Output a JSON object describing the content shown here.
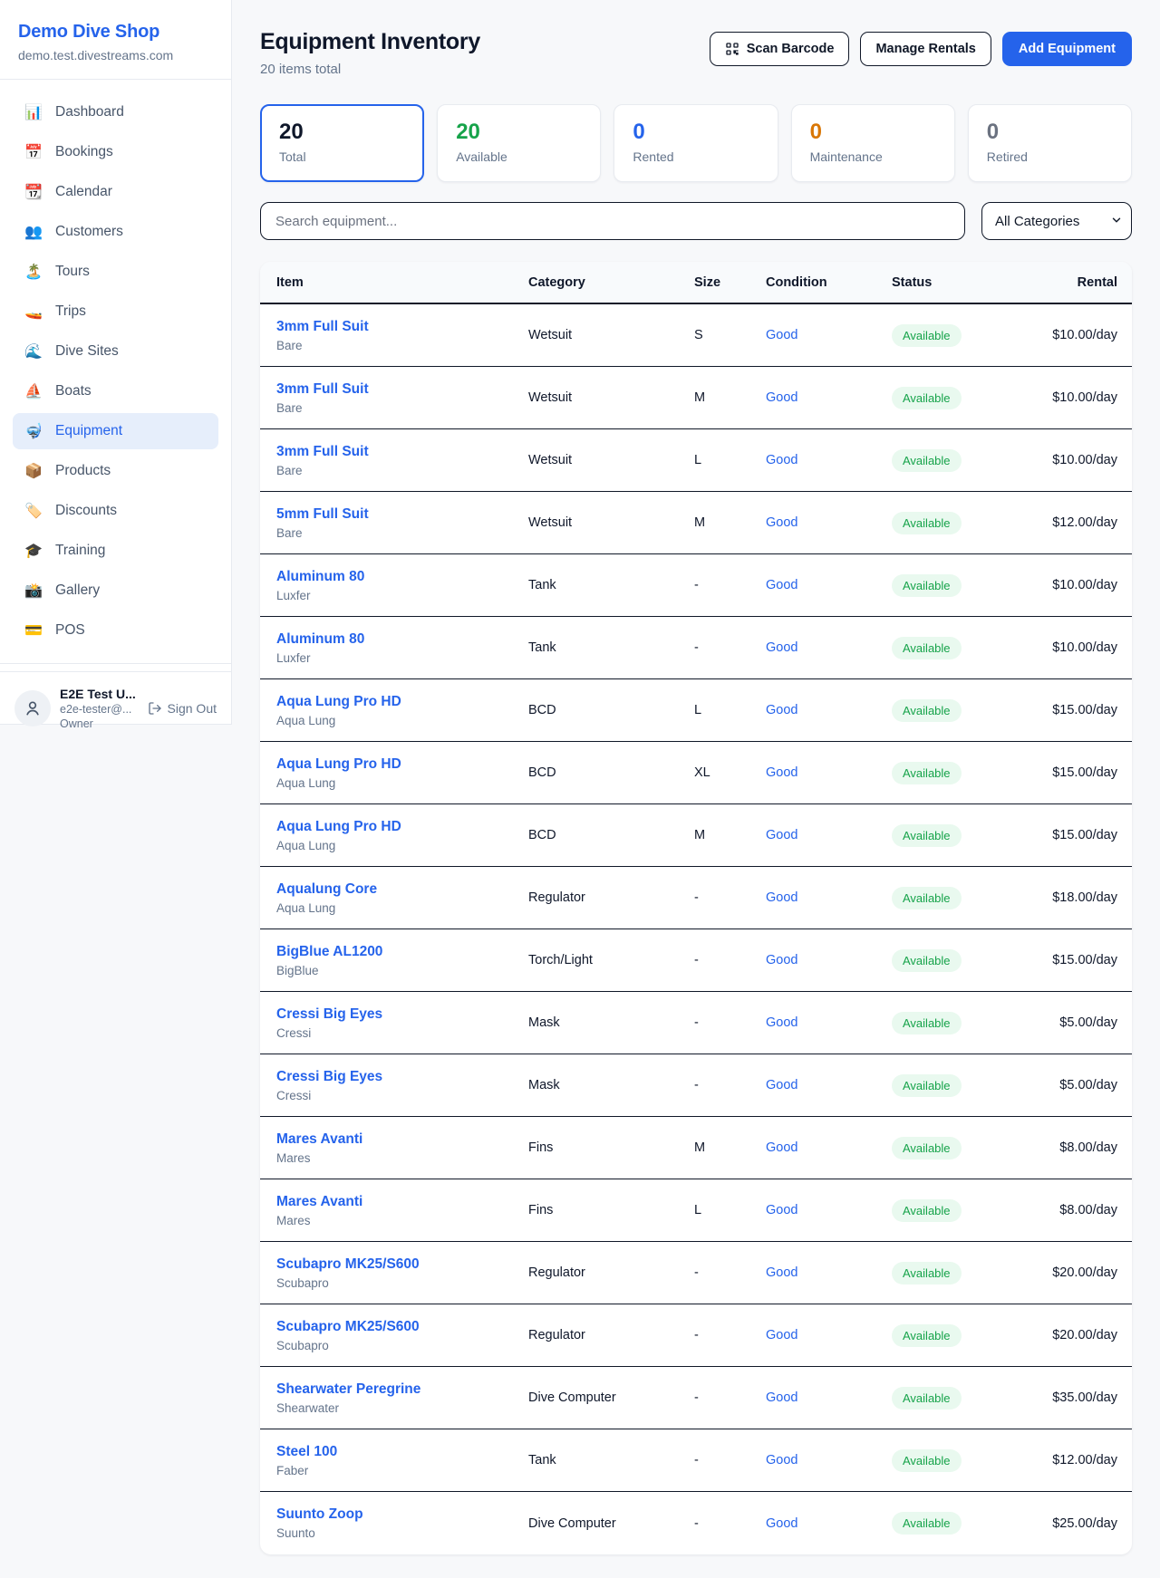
{
  "sidebar": {
    "brand": "Demo Dive Shop",
    "domain": "demo.test.divestreams.com",
    "items": [
      {
        "label": "Dashboard",
        "icon": "📊",
        "active": false
      },
      {
        "label": "Bookings",
        "icon": "📅",
        "active": false
      },
      {
        "label": "Calendar",
        "icon": "📆",
        "active": false
      },
      {
        "label": "Customers",
        "icon": "👥",
        "active": false
      },
      {
        "label": "Tours",
        "icon": "🏝️",
        "active": false
      },
      {
        "label": "Trips",
        "icon": "🚤",
        "active": false
      },
      {
        "label": "Dive Sites",
        "icon": "🌊",
        "active": false
      },
      {
        "label": "Boats",
        "icon": "⛵",
        "active": false
      },
      {
        "label": "Equipment",
        "icon": "🤿",
        "active": true
      },
      {
        "label": "Products",
        "icon": "📦",
        "active": false
      },
      {
        "label": "Discounts",
        "icon": "🏷️",
        "active": false
      },
      {
        "label": "Training",
        "icon": "🎓",
        "active": false
      },
      {
        "label": "Gallery",
        "icon": "📸",
        "active": false
      },
      {
        "label": "POS",
        "icon": "💳",
        "active": false
      }
    ],
    "user": {
      "name": "E2E Test U...",
      "email": "e2e-tester@...",
      "role": "Owner",
      "sign_out_label": "Sign Out"
    }
  },
  "header": {
    "title": "Equipment Inventory",
    "subtitle": "20 items total",
    "scan_barcode_label": "Scan Barcode",
    "manage_rentals_label": "Manage Rentals",
    "add_equipment_label": "Add Equipment"
  },
  "stats": [
    {
      "value": "20",
      "label": "Total",
      "color": "#0f172a",
      "selected": true
    },
    {
      "value": "20",
      "label": "Available",
      "color": "#16a34a",
      "selected": false
    },
    {
      "value": "0",
      "label": "Rented",
      "color": "#2563eb",
      "selected": false
    },
    {
      "value": "0",
      "label": "Maintenance",
      "color": "#d97706",
      "selected": false
    },
    {
      "value": "0",
      "label": "Retired",
      "color": "#6b7280",
      "selected": false
    }
  ],
  "filters": {
    "search_placeholder": "Search equipment...",
    "category_selected": "All Categories",
    "category_options": [
      "All Categories"
    ]
  },
  "table": {
    "columns": [
      "Item",
      "Category",
      "Size",
      "Condition",
      "Status",
      "Rental"
    ],
    "rows": [
      {
        "name": "3mm Full Suit",
        "brand": "Bare",
        "category": "Wetsuit",
        "size": "S",
        "condition": "Good",
        "status": "Available",
        "rental": "$10.00/day"
      },
      {
        "name": "3mm Full Suit",
        "brand": "Bare",
        "category": "Wetsuit",
        "size": "M",
        "condition": "Good",
        "status": "Available",
        "rental": "$10.00/day"
      },
      {
        "name": "3mm Full Suit",
        "brand": "Bare",
        "category": "Wetsuit",
        "size": "L",
        "condition": "Good",
        "status": "Available",
        "rental": "$10.00/day"
      },
      {
        "name": "5mm Full Suit",
        "brand": "Bare",
        "category": "Wetsuit",
        "size": "M",
        "condition": "Good",
        "status": "Available",
        "rental": "$12.00/day"
      },
      {
        "name": "Aluminum 80",
        "brand": "Luxfer",
        "category": "Tank",
        "size": "-",
        "condition": "Good",
        "status": "Available",
        "rental": "$10.00/day"
      },
      {
        "name": "Aluminum 80",
        "brand": "Luxfer",
        "category": "Tank",
        "size": "-",
        "condition": "Good",
        "status": "Available",
        "rental": "$10.00/day"
      },
      {
        "name": "Aqua Lung Pro HD",
        "brand": "Aqua Lung",
        "category": "BCD",
        "size": "L",
        "condition": "Good",
        "status": "Available",
        "rental": "$15.00/day"
      },
      {
        "name": "Aqua Lung Pro HD",
        "brand": "Aqua Lung",
        "category": "BCD",
        "size": "XL",
        "condition": "Good",
        "status": "Available",
        "rental": "$15.00/day"
      },
      {
        "name": "Aqua Lung Pro HD",
        "brand": "Aqua Lung",
        "category": "BCD",
        "size": "M",
        "condition": "Good",
        "status": "Available",
        "rental": "$15.00/day"
      },
      {
        "name": "Aqualung Core",
        "brand": "Aqua Lung",
        "category": "Regulator",
        "size": "-",
        "condition": "Good",
        "status": "Available",
        "rental": "$18.00/day"
      },
      {
        "name": "BigBlue AL1200",
        "brand": "BigBlue",
        "category": "Torch/Light",
        "size": "-",
        "condition": "Good",
        "status": "Available",
        "rental": "$15.00/day"
      },
      {
        "name": "Cressi Big Eyes",
        "brand": "Cressi",
        "category": "Mask",
        "size": "-",
        "condition": "Good",
        "status": "Available",
        "rental": "$5.00/day"
      },
      {
        "name": "Cressi Big Eyes",
        "brand": "Cressi",
        "category": "Mask",
        "size": "-",
        "condition": "Good",
        "status": "Available",
        "rental": "$5.00/day"
      },
      {
        "name": "Mares Avanti",
        "brand": "Mares",
        "category": "Fins",
        "size": "M",
        "condition": "Good",
        "status": "Available",
        "rental": "$8.00/day"
      },
      {
        "name": "Mares Avanti",
        "brand": "Mares",
        "category": "Fins",
        "size": "L",
        "condition": "Good",
        "status": "Available",
        "rental": "$8.00/day"
      },
      {
        "name": "Scubapro MK25/S600",
        "brand": "Scubapro",
        "category": "Regulator",
        "size": "-",
        "condition": "Good",
        "status": "Available",
        "rental": "$20.00/day"
      },
      {
        "name": "Scubapro MK25/S600",
        "brand": "Scubapro",
        "category": "Regulator",
        "size": "-",
        "condition": "Good",
        "status": "Available",
        "rental": "$20.00/day"
      },
      {
        "name": "Shearwater Peregrine",
        "brand": "Shearwater",
        "category": "Dive Computer",
        "size": "-",
        "condition": "Good",
        "status": "Available",
        "rental": "$35.00/day"
      },
      {
        "name": "Steel 100",
        "brand": "Faber",
        "category": "Tank",
        "size": "-",
        "condition": "Good",
        "status": "Available",
        "rental": "$12.00/day"
      },
      {
        "name": "Suunto Zoop",
        "brand": "Suunto",
        "category": "Dive Computer",
        "size": "-",
        "condition": "Good",
        "status": "Available",
        "rental": "$25.00/day"
      }
    ]
  },
  "colors": {
    "accent": "#2563eb",
    "available_green": "#16a34a",
    "maintenance_orange": "#d97706",
    "retired_gray": "#6b7280",
    "row_border": "#101828"
  }
}
